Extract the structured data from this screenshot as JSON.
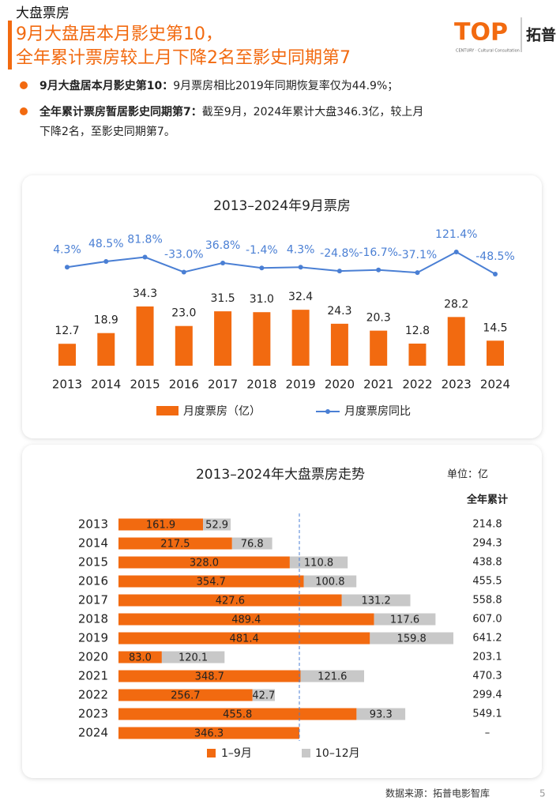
{
  "header": {
    "section": "大盘票房",
    "title_lines": [
      "9月大盘居本月影史第10，",
      "全年累计票房较上月下降2名至影史同期第7"
    ],
    "logo": "TOP",
    "logo_cn": "拓普",
    "logo_sub": "CENTURY · Cultural Consultation"
  },
  "bullets": [
    {
      "bold": "9月大盘居本月影史第10：",
      "text": [
        "9月票房相比2019年同期恢复率仅为44.9%；"
      ]
    },
    {
      "bold": "全年累计票房暂居影史同期第7：",
      "text": [
        "截至9月，2024年累计大盘346.3亿，较上月",
        "下降2名，至影史同期第7。"
      ]
    }
  ],
  "chart_data": [
    {
      "type": "bar-line",
      "title": "2013–2024年9月票房",
      "categories": [
        "2013",
        "2014",
        "2015",
        "2016",
        "2017",
        "2018",
        "2019",
        "2020",
        "2021",
        "2022",
        "2023",
        "2024"
      ],
      "series": [
        {
          "name": "月度票房（亿）",
          "color": "#f26a10",
          "values": [
            12.7,
            18.9,
            34.3,
            23.0,
            31.5,
            31.0,
            32.4,
            24.3,
            20.3,
            12.8,
            28.2,
            14.5
          ],
          "value_labels": [
            "12.7",
            "18.9",
            "34.3",
            "23.0",
            "31.5",
            "31.0",
            "32.4",
            "24.3",
            "20.3",
            "12.8",
            "28.2",
            "14.5"
          ]
        },
        {
          "name": "月度票房同比",
          "color": "#4a7fd4",
          "axis": "y2",
          "values": [
            4.3,
            48.5,
            81.8,
            -33.0,
            36.8,
            -1.4,
            4.3,
            -24.8,
            -16.7,
            -37.1,
            121.4,
            -48.5
          ],
          "value_labels": [
            "4.3%",
            "48.5%",
            "81.8%",
            "-33.0%",
            "36.8%",
            "-1.4%",
            "4.3%",
            "-24.8%",
            "-16.7%",
            "-37.1%",
            "121.4%",
            "-48.5%"
          ]
        }
      ]
    },
    {
      "type": "stacked-barh",
      "title": "2013–2024年大盘票房走势",
      "unit": "单位：亿",
      "totals_title": "全年累计",
      "categories": [
        "2013",
        "2014",
        "2015",
        "2016",
        "2017",
        "2018",
        "2019",
        "2020",
        "2021",
        "2022",
        "2023",
        "2024"
      ],
      "series": [
        {
          "name": "1–9月",
          "color": "#f26a10",
          "values": [
            161.9,
            217.5,
            328.0,
            354.7,
            427.6,
            489.4,
            481.4,
            83.0,
            348.7,
            256.7,
            455.8,
            346.3
          ],
          "value_labels": [
            "161.9",
            "217.5",
            "328.0",
            "354.7",
            "427.6",
            "489.4",
            "481.4",
            "83.0",
            "348.7",
            "256.7",
            "455.8",
            "346.3"
          ]
        },
        {
          "name": "10–12月",
          "color": "#c8c8c8",
          "values": [
            52.9,
            76.8,
            110.8,
            100.8,
            131.2,
            117.6,
            159.8,
            120.1,
            121.6,
            42.7,
            93.3,
            null
          ],
          "value_labels": [
            "52.9",
            "76.8",
            "110.8",
            "100.8",
            "131.2",
            "117.6",
            "159.8",
            "120.1",
            "121.6",
            "42.7",
            "93.3",
            null
          ]
        }
      ],
      "totals": [
        "214.8",
        "294.3",
        "438.8",
        "455.5",
        "558.8",
        "607.0",
        "641.2",
        "203.1",
        "470.3",
        "299.4",
        "549.1",
        "–"
      ]
    }
  ],
  "footer": {
    "source": "数据来源：拓普电影智库",
    "page": "5"
  }
}
